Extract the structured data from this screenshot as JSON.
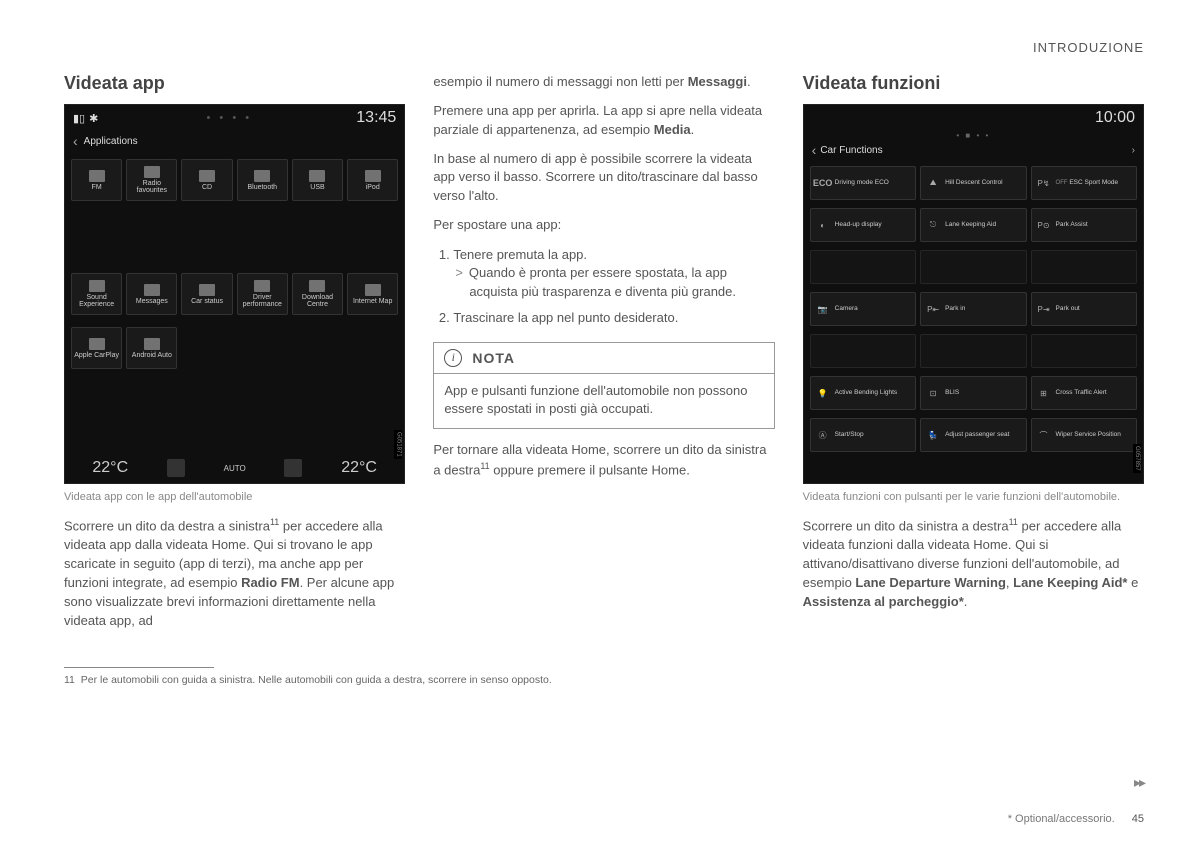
{
  "header": {
    "section": "INTRODUZIONE"
  },
  "col1": {
    "title": "Videata app",
    "phone": {
      "time": "13:45",
      "crumb": "Applications",
      "apps_row1": [
        {
          "label": "FM"
        },
        {
          "label": "Radio favourites"
        },
        {
          "label": "CD"
        },
        {
          "label": "Bluetooth"
        },
        {
          "label": "USB"
        },
        {
          "label": "iPod"
        }
      ],
      "apps_row2": [
        {
          "label": "Sound Experience"
        },
        {
          "label": "Messages"
        },
        {
          "label": "Car status"
        },
        {
          "label": "Driver performance"
        },
        {
          "label": "Download Centre"
        },
        {
          "label": "Internet Map"
        }
      ],
      "apps_row3": [
        {
          "label": "Apple CarPlay"
        },
        {
          "label": "Android Auto"
        }
      ],
      "temp_left": "22°C",
      "auto": "AUTO",
      "temp_right": "22°C",
      "code": "G051871"
    },
    "caption": "Videata app con le app dell'automobile",
    "para": "Scorrere un dito da destra a sinistra",
    "fn_ref": "11",
    "para_cont": " per accedere alla videata app dalla videata Home. Qui si trovano le app scaricate in seguito (app di terzi), ma anche app per funzioni integrate, ad esempio ",
    "bold1": "Radio FM",
    "para_end": ". Per alcune app sono visualizzate brevi informazioni direttamente nella videata app, ad"
  },
  "col2": {
    "p1a": "esempio il numero di messaggi non letti per ",
    "p1bold": "Messaggi",
    "p1b": ".",
    "p2a": "Premere una app per aprirla. La app si apre nella videata parziale di appartenenza, ad esempio ",
    "p2bold": "Media",
    "p2b": ".",
    "p3": "In base al numero di app è possibile scorrere la videata app verso il basso. Scorrere un dito/trascinare dal basso verso l'alto.",
    "p4": "Per spostare una app:",
    "step1": "Tenere premuta la app.",
    "step1sub": "Quando è pronta per essere spostata, la app acquista più trasparenza e diventa più grande.",
    "step2": "Trascinare la app nel punto desiderato.",
    "nota_title": "NOTA",
    "nota_body": "App e pulsanti funzione dell'automobile non possono essere spostati in posti già occupati.",
    "p5a": "Per tornare alla videata Home, scorrere un dito da sinistra a destra",
    "p5fn": "11",
    "p5b": " oppure premere il pulsante Home."
  },
  "col3": {
    "title": "Videata funzioni",
    "phone": {
      "time": "10:00",
      "crumb": "Car Functions",
      "rows": [
        [
          {
            "ic": "ECO",
            "lbl": "Driving mode ECO"
          },
          {
            "ic": "⛰",
            "lbl": "Hill Descent Control"
          },
          {
            "ic": "P↯",
            "lbl": "ESC Sport Mode",
            "pre": "OFF"
          }
        ],
        [
          {
            "ic": "◐",
            "lbl": "Head-up display"
          },
          {
            "ic": "⎋",
            "lbl": "Lane Keeping Aid"
          },
          {
            "ic": "P⊙",
            "lbl": "Park Assist"
          }
        ],
        [
          {
            "ic": "",
            "lbl": ""
          },
          {
            "ic": "",
            "lbl": ""
          },
          {
            "ic": "",
            "lbl": ""
          }
        ],
        [
          {
            "ic": "📷",
            "lbl": "Camera"
          },
          {
            "ic": "P⇤",
            "lbl": "Park in"
          },
          {
            "ic": "P⇥",
            "lbl": "Park out"
          }
        ],
        [
          {
            "ic": "",
            "lbl": ""
          },
          {
            "ic": "",
            "lbl": ""
          },
          {
            "ic": "",
            "lbl": ""
          }
        ],
        [
          {
            "ic": "💡",
            "lbl": "Active Bending Lights"
          },
          {
            "ic": "⊡",
            "lbl": "BLIS"
          },
          {
            "ic": "⊞",
            "lbl": "Cross Traffic Alert"
          }
        ],
        [
          {
            "ic": "Ⓐ",
            "lbl": "Start/Stop"
          },
          {
            "ic": "💺",
            "lbl": "Adjust passenger seat"
          },
          {
            "ic": "⌒",
            "lbl": "Wiper Service Position"
          }
        ]
      ],
      "code": "G057857"
    },
    "caption": "Videata funzioni con pulsanti per le varie funzioni dell'automobile.",
    "p1a": "Scorrere un dito da sinistra a destra",
    "p1fn": "11",
    "p1b": " per accedere alla videata funzioni dalla videata Home. Qui si attivano/disattivano diverse funzioni dell'automobile, ad esempio ",
    "b1": "Lane Departure Warning",
    "p1c": ", ",
    "b2": "Lane Keeping Aid*",
    "p1d": " e ",
    "b3": "Assistenza al parcheggio*",
    "p1e": "."
  },
  "footnote": {
    "num": "11",
    "text": "Per le automobili con guida a sinistra. Nelle automobili con guida a destra, scorrere in senso opposto."
  },
  "footer": {
    "opt": "* Optional/accessorio.",
    "page": "45"
  },
  "cont": "▸▸"
}
